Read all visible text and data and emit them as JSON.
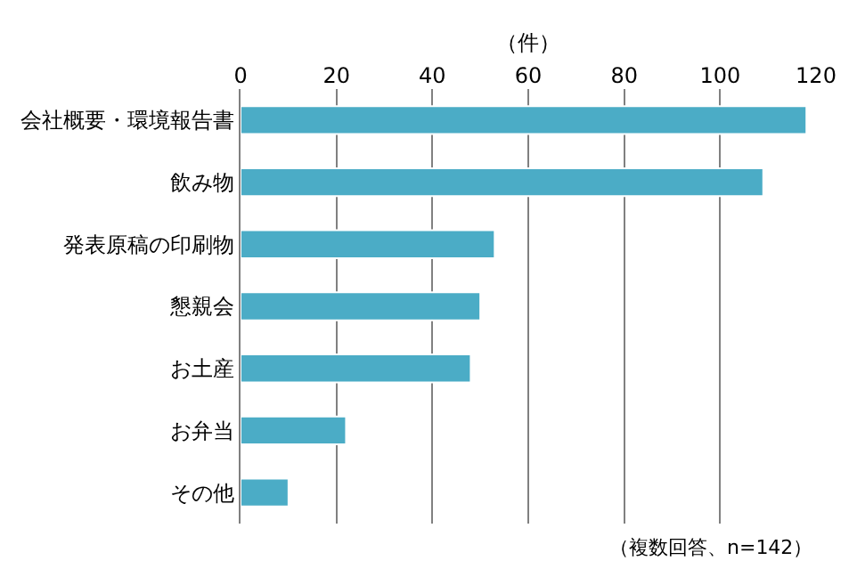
{
  "chart_data": {
    "type": "bar",
    "orientation": "horizontal",
    "xlabel": "（件）",
    "categories": [
      "会社概要・環境報告書",
      "飲み物",
      "発表原稿の印刷物",
      "懇親会",
      "お土産",
      "お弁当",
      "その他"
    ],
    "values": [
      118,
      109,
      53,
      50,
      48,
      22,
      10
    ],
    "color": "#4bacc6",
    "xlim": [
      0,
      120
    ],
    "xticks": [
      0,
      20,
      40,
      60,
      80,
      100,
      120
    ],
    "grid": "x",
    "legend": false,
    "annotations": [
      "（複数回答、n=142）"
    ]
  }
}
